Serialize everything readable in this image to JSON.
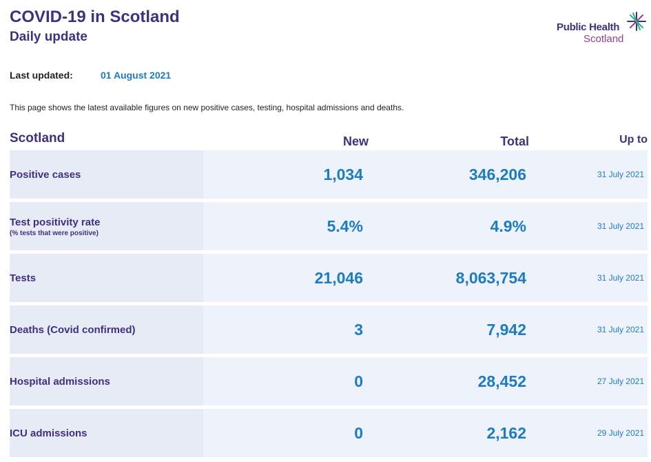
{
  "header": {
    "title": "COVID-19 in Scotland",
    "subtitle": "Daily update",
    "logo_line1": "Public Health",
    "logo_line2": "Scotland"
  },
  "updated": {
    "label": "Last updated:",
    "value": "01 August 2021"
  },
  "description": "This page shows the latest available figures on new positive cases, testing, hospital admissions and deaths.",
  "table": {
    "headers": {
      "region": "Scotland",
      "new": "New",
      "total": "Total",
      "upto": "Up to"
    },
    "rows": [
      {
        "label": "Positive cases",
        "sublabel": "",
        "new": "1,034",
        "total": "346,206",
        "upto": "31 July 2021"
      },
      {
        "label": "Test positivity rate",
        "sublabel": "(% tests that were positive)",
        "new": "5.4%",
        "total": "4.9%",
        "upto": "31 July 2021"
      },
      {
        "label": "Tests",
        "sublabel": "",
        "new": "21,046",
        "total": "8,063,754",
        "upto": "31 July 2021"
      },
      {
        "label": "Deaths (Covid confirmed)",
        "sublabel": "",
        "new": "3",
        "total": "7,942",
        "upto": "31 July 2021"
      },
      {
        "label": "Hospital admissions",
        "sublabel": "",
        "new": "0",
        "total": "28,452",
        "upto": "27 July 2021"
      },
      {
        "label": "ICU admissions",
        "sublabel": "",
        "new": "0",
        "total": "2,162",
        "upto": "29 July 2021"
      }
    ]
  },
  "colors": {
    "brand_purple": "#3f317f",
    "accent_blue": "#1d7bc4",
    "logo_magenta": "#9b3b8f",
    "logo_green": "#2fb08a",
    "row_bg": "#eef2fa",
    "label_cell_bg": "#e7ebf6"
  },
  "icons": {
    "logo_mark": "star-burst-icon"
  }
}
